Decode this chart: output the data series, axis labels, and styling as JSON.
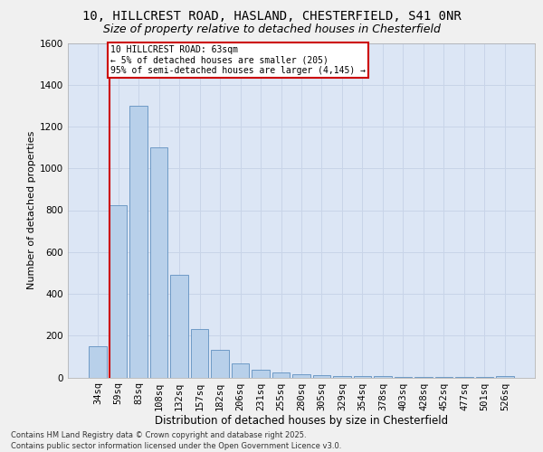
{
  "title_line1": "10, HILLCREST ROAD, HASLAND, CHESTERFIELD, S41 0NR",
  "title_line2": "Size of property relative to detached houses in Chesterfield",
  "xlabel": "Distribution of detached houses by size in Chesterfield",
  "ylabel": "Number of detached properties",
  "categories": [
    "34sq",
    "59sq",
    "83sq",
    "108sq",
    "132sq",
    "157sq",
    "182sq",
    "206sq",
    "231sq",
    "255sq",
    "280sq",
    "305sq",
    "329sq",
    "354sq",
    "378sq",
    "403sq",
    "428sq",
    "452sq",
    "477sq",
    "501sq",
    "526sq"
  ],
  "values": [
    150,
    825,
    1300,
    1100,
    490,
    230,
    130,
    65,
    35,
    25,
    15,
    10,
    8,
    6,
    5,
    4,
    3,
    3,
    3,
    2,
    8
  ],
  "bar_color": "#b8d0ea",
  "bar_edge_color": "#6090c0",
  "red_line_bin": 1,
  "annotation_text": "10 HILLCREST ROAD: 63sqm\n← 5% of detached houses are smaller (205)\n95% of semi-detached houses are larger (4,145) →",
  "annotation_box_facecolor": "#ffffff",
  "annotation_box_edgecolor": "#cc0000",
  "grid_color": "#c8d4e8",
  "bg_color": "#dce6f5",
  "fig_bg_color": "#f0f0f0",
  "ylim": [
    0,
    1600
  ],
  "yticks": [
    0,
    200,
    400,
    600,
    800,
    1000,
    1200,
    1400,
    1600
  ],
  "footer": "Contains HM Land Registry data © Crown copyright and database right 2025.\nContains public sector information licensed under the Open Government Licence v3.0.",
  "title1_fontsize": 10,
  "title2_fontsize": 9,
  "ylabel_fontsize": 8,
  "xlabel_fontsize": 8.5,
  "tick_fontsize": 7.5,
  "annot_fontsize": 7,
  "footer_fontsize": 6
}
